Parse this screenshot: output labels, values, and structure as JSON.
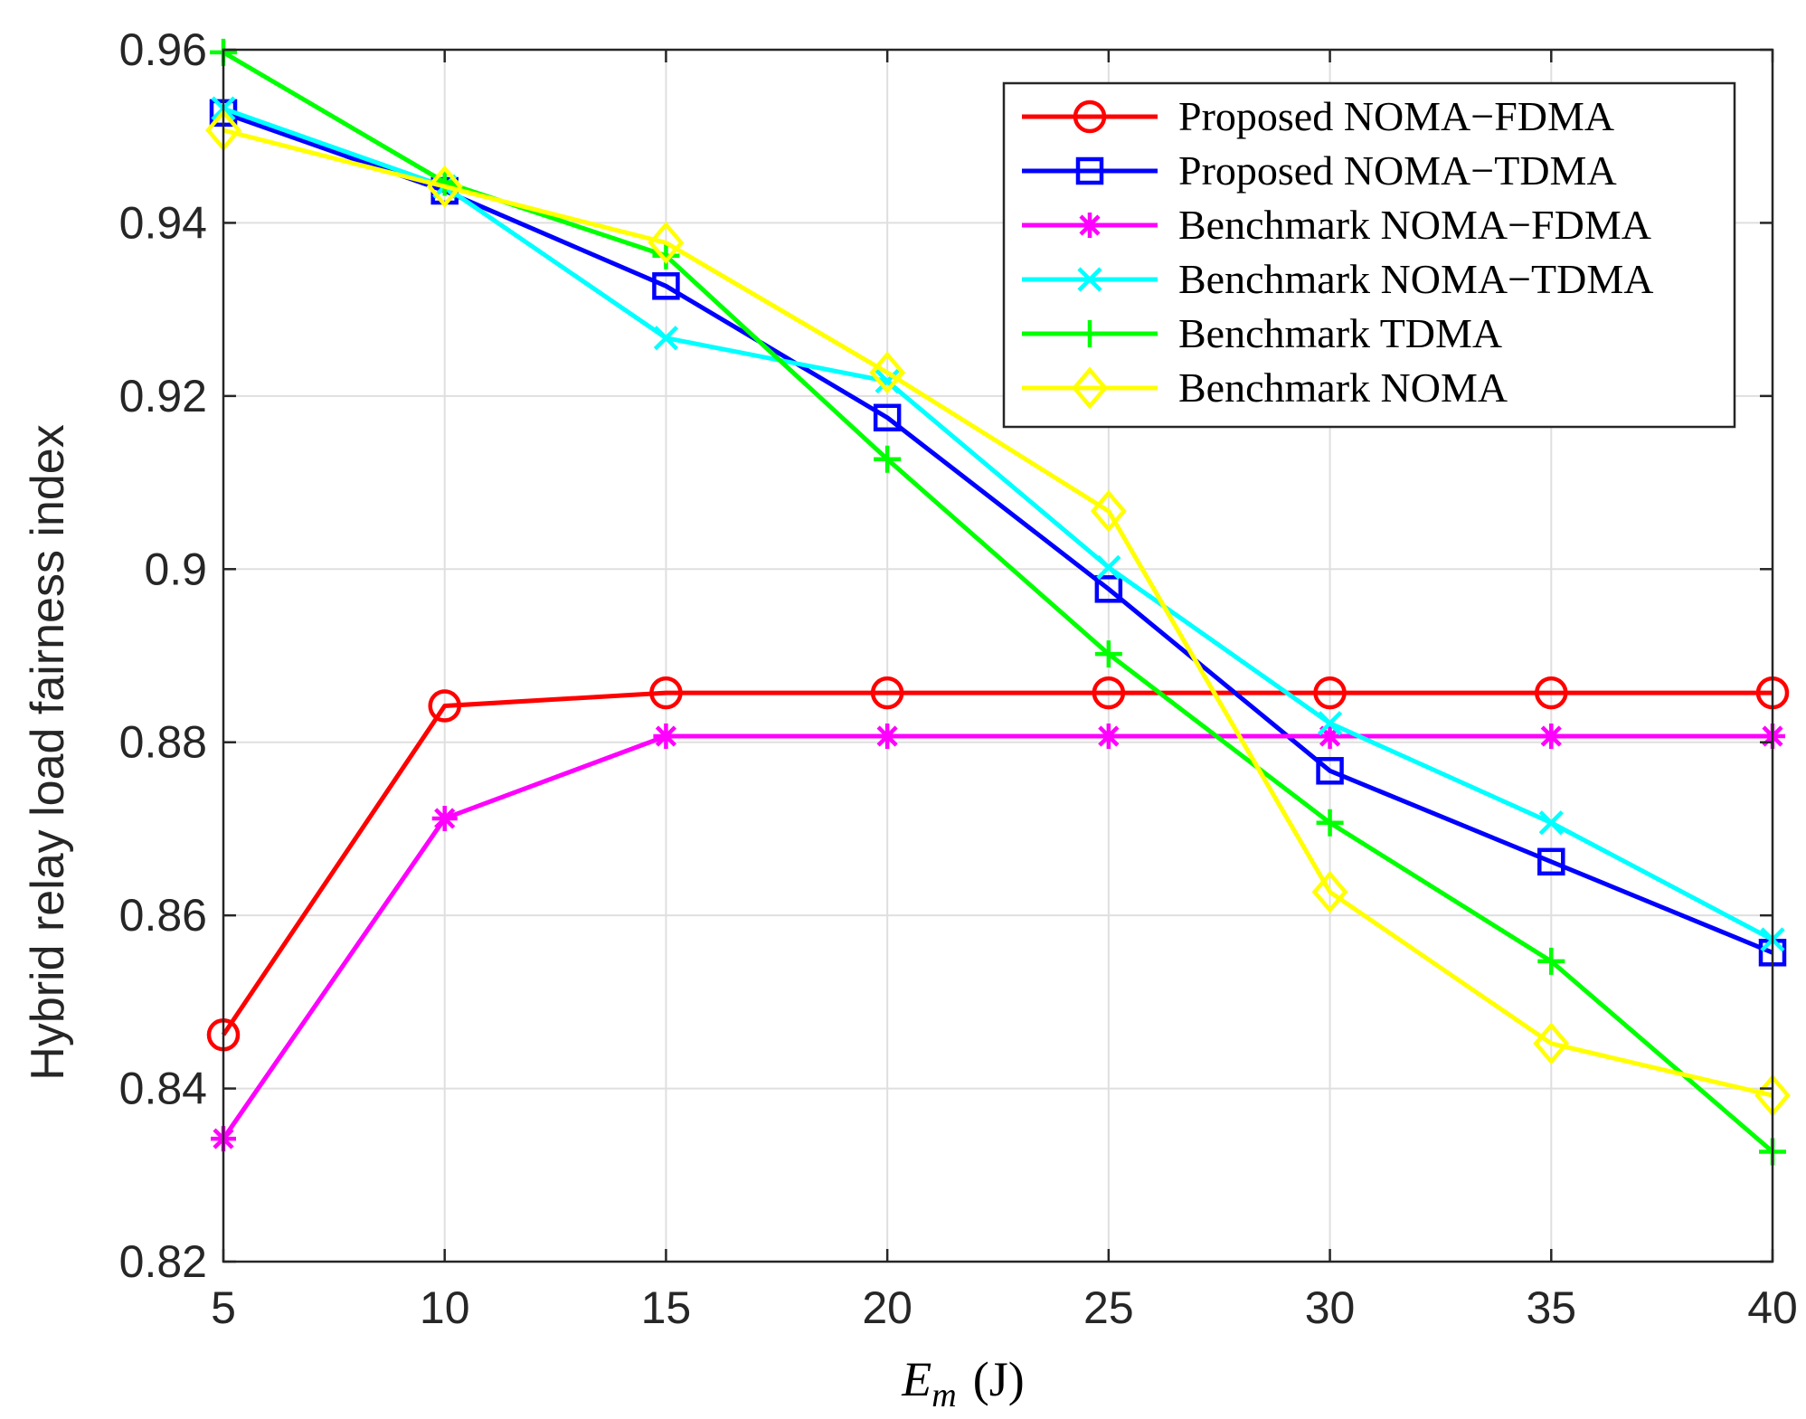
{
  "chart_data": {
    "type": "line",
    "title": "",
    "xlabel": {
      "symbol": "E",
      "subscript": "m",
      "unit": "(J)"
    },
    "ylabel": "Hybrid relay load fairness index",
    "x": [
      5,
      10,
      15,
      20,
      25,
      30,
      35,
      40
    ],
    "xlim": [
      5,
      40
    ],
    "ylim": [
      0.82,
      0.96
    ],
    "xticks": [
      5,
      10,
      15,
      20,
      25,
      30,
      35,
      40
    ],
    "xtick_labels": [
      "5",
      "10",
      "15",
      "20",
      "25",
      "30",
      "35",
      "40"
    ],
    "yticks": [
      0.82,
      0.84,
      0.86,
      0.88,
      0.9,
      0.92,
      0.94,
      0.96
    ],
    "ytick_labels": [
      "0.82",
      "0.84",
      "0.86",
      "0.88",
      "0.9",
      "0.92",
      "0.94",
      "0.96"
    ],
    "grid": true,
    "legend_position": "top-right",
    "series": [
      {
        "name": "Proposed NOMA−FDMA",
        "color": "#ff0000",
        "marker": "circle",
        "values": [
          0.8462,
          0.8842,
          0.8857,
          0.8857,
          0.8857,
          0.8857,
          0.8857,
          0.8857
        ]
      },
      {
        "name": "Proposed NOMA−TDMA",
        "color": "#0000ff",
        "marker": "square",
        "values": [
          0.9527,
          0.9437,
          0.9327,
          0.9175,
          0.8977,
          0.8767,
          0.8662,
          0.8557
        ]
      },
      {
        "name": "Benchmark NOMA−FDMA",
        "color": "#ff00ff",
        "marker": "asterisk",
        "values": [
          0.8342,
          0.8712,
          0.8807,
          0.8807,
          0.8807,
          0.8807,
          0.8807,
          0.8807
        ]
      },
      {
        "name": "Benchmark NOMA−TDMA",
        "color": "#00ffff",
        "marker": "x",
        "values": [
          0.9532,
          0.9442,
          0.9267,
          0.9217,
          0.9002,
          0.8822,
          0.8707,
          0.8572
        ]
      },
      {
        "name": "Benchmark TDMA",
        "color": "#00ff00",
        "marker": "plus",
        "values": [
          0.9597,
          0.9447,
          0.9362,
          0.9127,
          0.8902,
          0.8707,
          0.8547,
          0.8327
        ]
      },
      {
        "name": "Benchmark NOMA",
        "color": "#ffff00",
        "marker": "diamond",
        "values": [
          0.9507,
          0.9442,
          0.9377,
          0.9227,
          0.9067,
          0.8627,
          0.8452,
          0.8392
        ]
      }
    ]
  }
}
